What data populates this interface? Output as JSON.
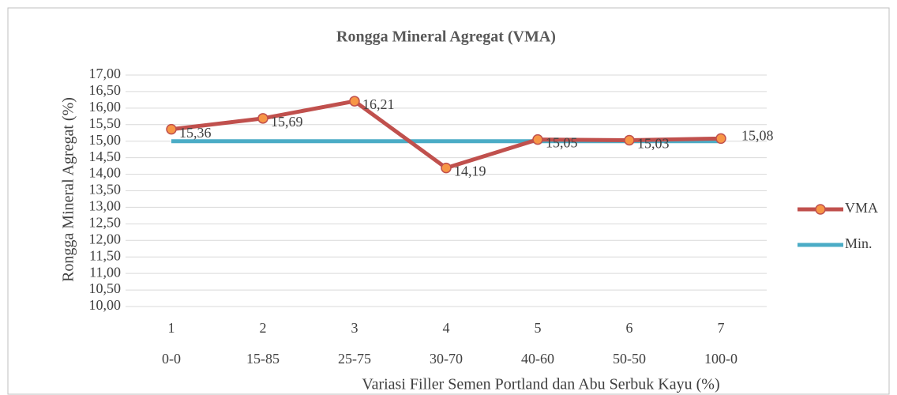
{
  "chart_data": {
    "type": "line",
    "title": "Rongga Mineral Agregat (VMA)",
    "x_label": "Variasi Filler Semen Portland dan Abu Serbuk Kayu (%)",
    "y_label": "Rongga Mineral Agregat (%)",
    "categories": [
      "1",
      "2",
      "3",
      "4",
      "5",
      "6",
      "7"
    ],
    "subcategories": [
      "0-0",
      "15-85",
      "25-75",
      "30-70",
      "40-60",
      "50-50",
      "100-0"
    ],
    "series": [
      {
        "name": "VMA",
        "color": "#c0504d",
        "marker_color": "#f79646",
        "values": [
          15.36,
          15.69,
          16.21,
          14.19,
          15.05,
          15.03,
          15.08
        ],
        "value_labels": [
          "15,36",
          "15,69",
          "16,21",
          "14,19",
          "15,05",
          "15,03",
          "15,08"
        ]
      },
      {
        "name": "Min.",
        "color": "#4bacc6",
        "values": [
          15,
          15,
          15,
          15,
          15,
          15,
          15
        ]
      }
    ],
    "ylim": [
      10,
      17
    ],
    "yticks": [
      {
        "value": 10,
        "label": "10,00"
      },
      {
        "value": 10.5,
        "label": "10,50"
      },
      {
        "value": 11,
        "label": "11,00"
      },
      {
        "value": 11.5,
        "label": "11,50"
      },
      {
        "value": 12,
        "label": "12,00"
      },
      {
        "value": 12.5,
        "label": "12,50"
      },
      {
        "value": 13,
        "label": "13,00"
      },
      {
        "value": 13.5,
        "label": "13,50"
      },
      {
        "value": 14,
        "label": "14,00"
      },
      {
        "value": 14.5,
        "label": "14,50"
      },
      {
        "value": 15,
        "label": "15,00"
      },
      {
        "value": 15.5,
        "label": "15,50"
      },
      {
        "value": 16,
        "label": "16,00"
      },
      {
        "value": 16.5,
        "label": "16,50"
      },
      {
        "value": 17,
        "label": "17,00"
      }
    ],
    "grid": true,
    "legend": "right"
  }
}
